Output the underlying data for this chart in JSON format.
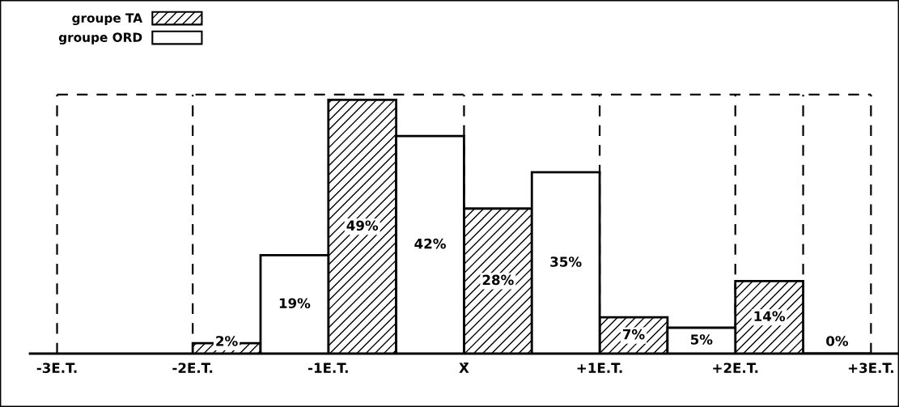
{
  "chart_data": {
    "type": "bar",
    "xlim": [
      -3.2,
      3.2
    ],
    "xticks": [
      {
        "value": -3,
        "label": "-3E.T."
      },
      {
        "value": -2,
        "label": "-2E.T."
      },
      {
        "value": -1,
        "label": "-1E.T."
      },
      {
        "value": 0,
        "label": "X̄"
      },
      {
        "value": 1,
        "label": "+1E.T."
      },
      {
        "value": 2,
        "label": "+2E.T."
      },
      {
        "value": 3,
        "label": "+3E.T."
      }
    ],
    "tick_labels": "x",
    "series": [
      {
        "name": "groupe TA",
        "color": "#000000",
        "x": [
          -1.75,
          -0.75,
          0.25,
          1.25,
          2.25
        ],
        "values": [
          2,
          49,
          28,
          7,
          14
        ],
        "value_labels": [
          "2%",
          "49%",
          "28%",
          "7%",
          "14%"
        ]
      },
      {
        "name": "groupe ORD",
        "color": "#ffffff",
        "x": [
          -1.25,
          -0.25,
          0.75,
          1.75,
          2.75
        ],
        "values": [
          19,
          42,
          35,
          5,
          0
        ],
        "value_labels": [
          "19%",
          "42%",
          "35%",
          "5%",
          "0%"
        ]
      }
    ],
    "legend": "top left",
    "grid": false,
    "ref_lines": [
      {
        "axis": "x",
        "value": -3,
        "line_style": "dashed",
        "color": "#000000"
      },
      {
        "axis": "x",
        "value": -2,
        "line_style": "dashed",
        "color": "#000000"
      },
      {
        "axis": "x",
        "value": 0,
        "line_style": "dashed",
        "color": "#000000"
      },
      {
        "axis": "x",
        "value": 1,
        "line_style": "dashed",
        "color": "#000000"
      },
      {
        "axis": "x",
        "value": 2,
        "line_style": "dashed",
        "color": "#000000"
      },
      {
        "axis": "x",
        "value": 2.5,
        "line_style": "dashed",
        "color": "#000000"
      },
      {
        "axis": "x",
        "value": 3,
        "line_style": "dashed",
        "color": "#000000"
      },
      {
        "axis": "y",
        "value": 50,
        "line_style": "dashed",
        "color": "#000000"
      }
    ]
  }
}
